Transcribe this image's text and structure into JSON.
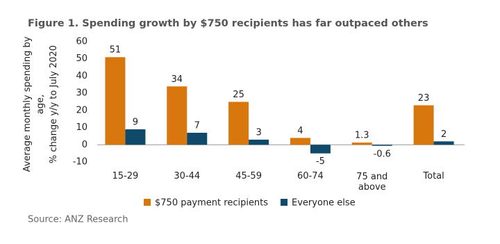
{
  "chart_data": {
    "type": "bar",
    "title": "Figure 1. Spending growth by $750 recipients has far outpaced others",
    "y_label": [
      "Average monthly spending by",
      "age,",
      "% change y/y to July 2020"
    ],
    "categories": [
      "15-29",
      "30-44",
      "45-59",
      "60-74",
      "75 and above",
      "Total"
    ],
    "series": [
      {
        "name": "$750 payment recipients",
        "color": "#d9770f",
        "values": [
          51,
          34,
          25,
          4,
          1.3,
          23
        ]
      },
      {
        "name": "Everyone else",
        "color": "#0f4a6b",
        "values": [
          9,
          7,
          3,
          -5,
          -0.6,
          2
        ]
      }
    ],
    "ylim": [
      -10,
      60
    ],
    "yticks": [
      -10,
      0,
      10,
      20,
      30,
      40,
      50,
      60
    ],
    "legend": "bottom",
    "source": "Source: ANZ Research"
  }
}
